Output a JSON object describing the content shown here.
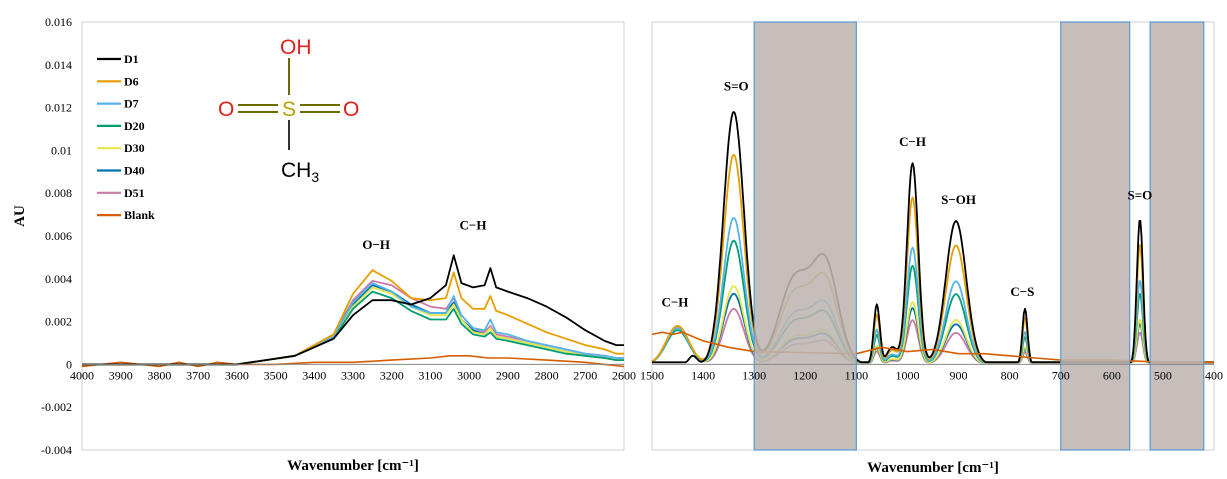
{
  "chart_data": {
    "type": "line",
    "ylabel": "AU",
    "xlabel": "Wavenumber [cm⁻¹]",
    "ylim": [
      -0.004,
      0.016
    ],
    "y_ticks": [
      "0.016",
      "0.014",
      "0.012",
      "0.01",
      "0.008",
      "0.006",
      "0.004",
      "0.002",
      "0",
      "-0.002",
      "-0.004"
    ],
    "legend": {
      "placement": "top-left",
      "entries": [
        "D1",
        "D6",
        "D7",
        "D20",
        "D30",
        "D40",
        "D51",
        "Blank"
      ]
    },
    "colors": {
      "D1": "#000000",
      "D6": "#E69F00",
      "D7": "#56B4E9",
      "D20": "#009E73",
      "D30": "#E6E64A",
      "D40": "#0072B2",
      "D51": "#CC79A7",
      "Blank": "#D55E00",
      "shade": "#BDB5B0",
      "shade_border": "#5B9BD5"
    },
    "molecule": {
      "top": "OH",
      "left": "O",
      "center": "S",
      "right": "O",
      "bottom": "CH",
      "bottom_sub": "3"
    },
    "panels": [
      {
        "xlim": [
          4000,
          2600
        ],
        "x_ticks": [
          "4000",
          "3900",
          "3800",
          "3700",
          "3600",
          "3500",
          "3400",
          "3300",
          "3200",
          "3100",
          "3000",
          "2900",
          "2800",
          "2700",
          "2600"
        ],
        "annotations": [
          {
            "text": "O−H",
            "x": 3240,
            "y": 0.0054
          },
          {
            "text": "C−H",
            "x": 2990,
            "y": 0.0063
          }
        ],
        "shade_regions": [],
        "series": [
          {
            "name": "D1",
            "x": [
              4000,
              3600,
              3450,
              3350,
              3300,
              3250,
              3200,
              3150,
              3100,
              3060,
              3040,
              3020,
              2990,
              2960,
              2945,
              2930,
              2900,
              2850,
              2800,
              2750,
              2700,
              2650,
              2620,
              2600
            ],
            "y": [
              0,
              0,
              0.0004,
              0.0012,
              0.0023,
              0.003,
              0.003,
              0.0028,
              0.0031,
              0.0037,
              0.0051,
              0.0038,
              0.0036,
              0.0037,
              0.0045,
              0.0036,
              0.0034,
              0.0031,
              0.0027,
              0.0022,
              0.0016,
              0.0011,
              0.0009,
              0.0009
            ]
          },
          {
            "name": "D6",
            "x": [
              4000,
              3600,
              3450,
              3350,
              3300,
              3250,
              3200,
              3150,
              3100,
              3060,
              3040,
              3020,
              2990,
              2960,
              2945,
              2930,
              2900,
              2850,
              2800,
              2750,
              2700,
              2650,
              2620,
              2600
            ],
            "y": [
              0,
              0,
              0.0004,
              0.0014,
              0.0033,
              0.0044,
              0.0039,
              0.0031,
              0.003,
              0.0031,
              0.0043,
              0.0031,
              0.0026,
              0.0026,
              0.0032,
              0.0025,
              0.0023,
              0.0019,
              0.0015,
              0.0012,
              0.0009,
              0.0007,
              0.0005,
              0.0005
            ]
          },
          {
            "name": "D7",
            "x": [
              4000,
              3600,
              3450,
              3350,
              3300,
              3250,
              3200,
              3150,
              3100,
              3060,
              3040,
              3020,
              2990,
              2960,
              2945,
              2930,
              2900,
              2850,
              2800,
              2750,
              2700,
              2650,
              2620,
              2600
            ],
            "y": [
              0,
              0,
              0.0004,
              0.0013,
              0.0029,
              0.0038,
              0.0034,
              0.0027,
              0.0024,
              0.0024,
              0.0032,
              0.0023,
              0.0017,
              0.0016,
              0.0021,
              0.0015,
              0.0014,
              0.0011,
              0.0009,
              0.0007,
              0.0005,
              0.0004,
              0.0003,
              0.0003
            ]
          },
          {
            "name": "D20",
            "x": [
              4000,
              3600,
              3450,
              3350,
              3300,
              3250,
              3200,
              3150,
              3100,
              3060,
              3040,
              3020,
              2990,
              2960,
              2945,
              2930,
              2900,
              2850,
              2800,
              2750,
              2700,
              2650,
              2620,
              2600
            ],
            "y": [
              0,
              0,
              0.0004,
              0.0012,
              0.0026,
              0.0034,
              0.0031,
              0.0025,
              0.0021,
              0.0021,
              0.0026,
              0.0019,
              0.0014,
              0.0013,
              0.0015,
              0.0012,
              0.0011,
              0.0009,
              0.0007,
              0.0005,
              0.0004,
              0.0003,
              0.0002,
              0.0002
            ]
          },
          {
            "name": "D30",
            "x": [
              4000,
              3600,
              3450,
              3350,
              3300,
              3250,
              3200,
              3150,
              3100,
              3060,
              3040,
              3020,
              2990,
              2960,
              2945,
              2930,
              2900,
              2850,
              2800,
              2750,
              2700,
              2650,
              2620,
              2600
            ],
            "y": [
              0,
              0,
              0.0004,
              0.0013,
              0.0027,
              0.0036,
              0.0033,
              0.0027,
              0.0023,
              0.0023,
              0.0028,
              0.0021,
              0.0015,
              0.0014,
              0.0017,
              0.0013,
              0.0012,
              0.001,
              0.0008,
              0.0006,
              0.0004,
              0.0003,
              0.0002,
              0.0002
            ]
          },
          {
            "name": "D40",
            "x": [
              4000,
              3600,
              3450,
              3350,
              3300,
              3250,
              3200,
              3150,
              3100,
              3060,
              3040,
              3020,
              2990,
              2960,
              2945,
              2930,
              2900,
              2850,
              2800,
              2750,
              2700,
              2650,
              2620,
              2600
            ],
            "y": [
              0,
              0,
              0.0004,
              0.0013,
              0.0028,
              0.0037,
              0.0034,
              0.0028,
              0.0024,
              0.0024,
              0.0029,
              0.0021,
              0.0016,
              0.0014,
              0.0017,
              0.0013,
              0.0012,
              0.001,
              0.0008,
              0.0006,
              0.0004,
              0.0003,
              0.0002,
              0.0002
            ]
          },
          {
            "name": "D51",
            "x": [
              4000,
              3600,
              3450,
              3350,
              3300,
              3250,
              3200,
              3150,
              3100,
              3060,
              3040,
              3020,
              2990,
              2960,
              2945,
              2930,
              2900,
              2850,
              2800,
              2750,
              2700,
              2650,
              2620,
              2600
            ],
            "y": [
              0,
              0,
              0.0004,
              0.0014,
              0.003,
              0.0039,
              0.0037,
              0.0031,
              0.0027,
              0.0026,
              0.0031,
              0.0023,
              0.0017,
              0.0015,
              0.0018,
              0.0014,
              0.0013,
              0.0011,
              0.0009,
              0.0007,
              0.0005,
              0.0004,
              0.0003,
              0.0003
            ]
          },
          {
            "name": "Blank",
            "x": [
              4000,
              3900,
              3800,
              3750,
              3700,
              3650,
              3600,
              3500,
              3400,
              3300,
              3200,
              3100,
              3050,
              3000,
              2950,
              2900,
              2800,
              2700,
              2650,
              2600
            ],
            "y": [
              -0.0001,
              0.0001,
              -0.0001,
              0.0001,
              -0.0001,
              0.0001,
              0,
              0,
              0.0001,
              0.0001,
              0.0002,
              0.0003,
              0.0004,
              0.0004,
              0.0003,
              0.0003,
              0.0002,
              0.0001,
              0,
              -0.0001
            ]
          }
        ]
      },
      {
        "xlim": [
          1500,
          400
        ],
        "x_ticks": [
          "1500",
          "1400",
          "1300",
          "1200",
          "1100",
          "1000",
          "900",
          "800",
          "700",
          "600",
          "500",
          "400"
        ],
        "annotations": [
          {
            "text": "C−H",
            "x": 1455,
            "y": 0.0027
          },
          {
            "text": "S=O",
            "x": 1335,
            "y": 0.0128
          },
          {
            "text": "C−H",
            "x": 990,
            "y": 0.0102
          },
          {
            "text": "S−OH",
            "x": 900,
            "y": 0.0075
          },
          {
            "text": "C−S",
            "x": 775,
            "y": 0.0032
          },
          {
            "text": "S=O",
            "x": 545,
            "y": 0.0077
          }
        ],
        "shade_regions": [
          [
            1300,
            1100
          ],
          [
            700,
            565
          ],
          [
            525,
            420
          ]
        ],
        "peak_scales": {
          "D1": 1.0,
          "D6": 0.83,
          "D7": 0.58,
          "D20": 0.49,
          "D30": 0.31,
          "D40": 0.28,
          "D51": 0.22
        },
        "shelf_1450": {
          "D1": 0.0,
          "D6": 0.0018,
          "D7": 0.0017,
          "D20": 0.0016,
          "D30": 0.0017,
          "D40": 0.0017,
          "D51": 0.0018
        },
        "blank": {
          "x": [
            1500,
            1480,
            1460,
            1440,
            1420,
            1400,
            1350,
            1300,
            1100,
            1050,
            1000,
            950,
            900,
            850,
            800,
            750,
            700,
            600,
            500,
            400
          ],
          "y": [
            0.0014,
            0.0015,
            0.0014,
            0.0015,
            0.0013,
            0.0011,
            0.0008,
            0.0006,
            0.0005,
            0.0008,
            0.0006,
            0.0007,
            0.0005,
            0.0005,
            0.0004,
            0.0003,
            0.0002,
            0.0002,
            0.0001,
            0.0001
          ]
        }
      }
    ]
  }
}
